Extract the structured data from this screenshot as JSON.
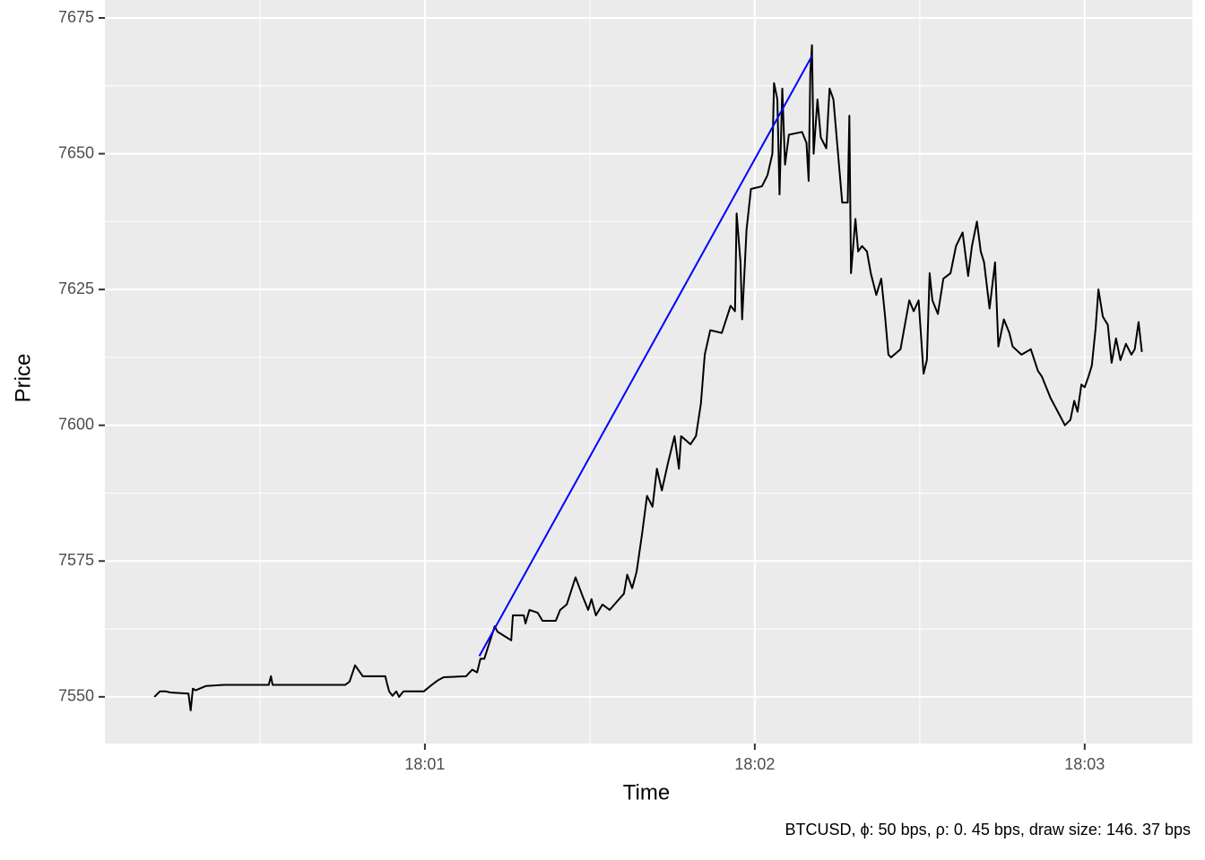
{
  "chart_data": {
    "type": "line",
    "x_label": "Time",
    "y_label": "Price",
    "caption": "BTCUSD, ϕ: 50 bps, ρ: 0. 45 bps, draw size: 146. 37 bps",
    "xlim": [
      1.8,
      199.6
    ],
    "xticks": [
      {
        "value": 60,
        "label": "18:01"
      },
      {
        "value": 120,
        "label": "18:02"
      },
      {
        "value": 180,
        "label": "18:03"
      }
    ],
    "ylim": [
      7541.4,
      7678.3
    ],
    "yticks": [
      7550,
      7575,
      7600,
      7625,
      7650,
      7675
    ],
    "grid": true,
    "series": [
      {
        "color": "#000000",
        "x": [
          10.8,
          11.8,
          12.9,
          13.7,
          17.0,
          17.4,
          17.8,
          18.3,
          20.2,
          23.5,
          31.6,
          32.0,
          32.3,
          45.5,
          46.3,
          47.3,
          48.7,
          52.8,
          53.1,
          53.5,
          54.1,
          54.8,
          55.3,
          56.1,
          59.8,
          61.0,
          62.3,
          63.4,
          67.5,
          68.6,
          69.5,
          70.1,
          70.8,
          72.7,
          73.2,
          75.7,
          76.0,
          78.0,
          78.3,
          79.0,
          80.5,
          81.4,
          83.8,
          84.6,
          85.8,
          87.4,
          88.7,
          89.7,
          90.3,
          91.1,
          92.3,
          93.6,
          94.9,
          96.2,
          96.8,
          97.7,
          98.5,
          99.5,
          100.4,
          101.4,
          102.2,
          103.1,
          104.2,
          105.4,
          106.2,
          106.6,
          108.3,
          109.3,
          110.2,
          110.9,
          111.9,
          114.0,
          115.6,
          116.4,
          116.7,
          117.4,
          117.7,
          118.5,
          119.3,
          121.3,
          122.3,
          123.2,
          123.5,
          124.1,
          124.5,
          125.0,
          125.5,
          126.2,
          128.6,
          129.4,
          129.8,
          130.1,
          130.4,
          130.7,
          131.4,
          132.0,
          133.0,
          133.6,
          134.3,
          135.9,
          136.9,
          137.2,
          137.5,
          138.3,
          138.8,
          139.5,
          140.4,
          141.1,
          142.1,
          143.0,
          143.7,
          144.3,
          144.8,
          146.5,
          148.1,
          148.9,
          149.8,
          150.7,
          151.3,
          151.8,
          152.3,
          153.3,
          154.3,
          155.6,
          156.6,
          157.8,
          158.8,
          159.5,
          160.4,
          161.1,
          161.7,
          162.7,
          163.7,
          164.3,
          165.3,
          166.3,
          166.9,
          168.5,
          170.2,
          171.5,
          172.2,
          173.8,
          175.9,
          176.4,
          177.4,
          178.1,
          178.7,
          179.4,
          180.0,
          180.7,
          181.3,
          182.0,
          182.5,
          183.3,
          184.2,
          184.9,
          185.7,
          186.5,
          187.5,
          188.5,
          189.1,
          189.8,
          190.4
        ],
        "values": [
          7550,
          7551,
          7551,
          7550.8,
          7550.6,
          7547.5,
          7551.5,
          7551.2,
          7552,
          7552.2,
          7552.2,
          7553.8,
          7552.2,
          7552.2,
          7552.8,
          7555.8,
          7553.8,
          7553.8,
          7552.5,
          7551,
          7550.2,
          7551,
          7550,
          7551,
          7551,
          7552,
          7553,
          7553.6,
          7553.8,
          7555,
          7554.5,
          7557,
          7557,
          7563,
          7562,
          7560.4,
          7565,
          7565,
          7563.5,
          7566,
          7565.5,
          7564,
          7564,
          7566,
          7567,
          7572,
          7568.5,
          7566,
          7568,
          7565,
          7567,
          7566,
          7567.5,
          7569,
          7572.5,
          7570,
          7573,
          7580,
          7587,
          7585,
          7592,
          7588,
          7593,
          7598,
          7592,
          7598,
          7596.5,
          7598,
          7604,
          7613,
          7617.5,
          7617,
          7622,
          7621,
          7639,
          7630,
          7619.5,
          7636,
          7643.5,
          7644,
          7646,
          7650,
          7663,
          7660,
          7642.5,
          7662,
          7648,
          7653.5,
          7654,
          7652,
          7645,
          7665,
          7670,
          7650,
          7660,
          7653,
          7651,
          7662,
          7660,
          7641,
          7641,
          7657,
          7628,
          7638,
          7632,
          7633,
          7632,
          7628,
          7624,
          7627,
          7620,
          7613,
          7612.5,
          7614,
          7623,
          7621,
          7623,
          7609.5,
          7612,
          7628,
          7623,
          7620.5,
          7627,
          7628,
          7633,
          7635.5,
          7627.5,
          7633,
          7637.5,
          7632,
          7630,
          7621.5,
          7630,
          7614.5,
          7619.5,
          7617,
          7614.5,
          7613,
          7614,
          7610,
          7609,
          7605,
          7601,
          7600,
          7601,
          7604.5,
          7602.5,
          7607.5,
          7607,
          7609,
          7611,
          7618,
          7625,
          7620,
          7618.5,
          7611.5,
          7616,
          7612,
          7615,
          7613,
          7614,
          7619,
          7613.5
        ]
      },
      {
        "color": "#0000ff",
        "x": [
          69.9,
          130.4
        ],
        "values": [
          7557.5,
          7668
        ]
      }
    ]
  }
}
